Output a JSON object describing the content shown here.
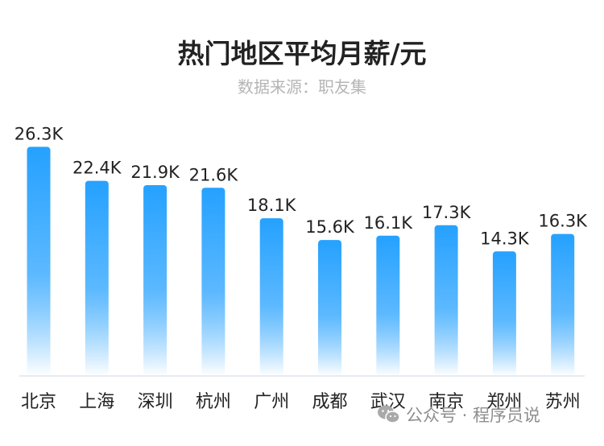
{
  "chart_data": {
    "type": "bar",
    "title": "热门地区平均月薪/元",
    "subtitle": "数据来源：职友集",
    "categories": [
      "北京",
      "上海",
      "深圳",
      "杭州",
      "广州",
      "成都",
      "武汉",
      "南京",
      "郑州",
      "苏州"
    ],
    "values": [
      26.3,
      22.4,
      21.9,
      21.6,
      18.1,
      15.6,
      16.1,
      17.3,
      14.3,
      16.3
    ],
    "value_labels": [
      "26.3K",
      "22.4K",
      "21.9K",
      "21.6K",
      "18.1K",
      "15.6K",
      "16.1K",
      "17.3K",
      "14.3K",
      "16.3K"
    ],
    "unit": "K",
    "ylim": [
      0,
      28
    ],
    "grid": false,
    "bar_color_top": "#25a1ff",
    "bar_color_bottom": "#ffffff"
  },
  "watermark": {
    "text": "公众号 · 程序员说",
    "icon": "wechat-icon"
  }
}
